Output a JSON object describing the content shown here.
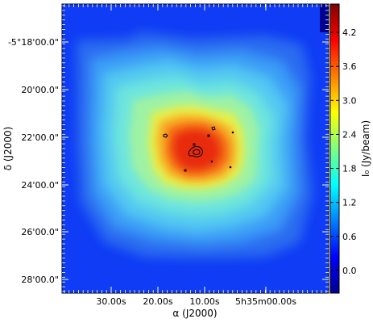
{
  "chart_data": {
    "type": "heatmap",
    "title": "",
    "xlabel": "α (J2000)",
    "ylabel": "δ (J2000)",
    "colorbar_label": "I₀ (Jy/beam)",
    "x_ticks": [
      "30.00s",
      "20.00s",
      "10.00s",
      "5h35m00.00s"
    ],
    "y_ticks": [
      "-5°18'00.0\"",
      "20'00.0\"",
      "22'00.0\"",
      "24'00.0\"",
      "26'00.0\"",
      "28'00.0\""
    ],
    "colorbar_ticks": [
      "0.0",
      "0.6",
      "1.2",
      "1.8",
      "2.4",
      "3.0",
      "3.6",
      "4.2"
    ],
    "colorbar_range": [
      -0.4,
      4.7
    ],
    "colormap": [
      "#00008f",
      "#0000ff",
      "#007fff",
      "#00ffff",
      "#7fff7f",
      "#ffff00",
      "#ff7f00",
      "#ff0000",
      "#7f0000"
    ],
    "intensity_levels": [
      {
        "level": 0.6,
        "color": "#2a6cf0"
      },
      {
        "level": 1.0,
        "color": "#3a9cf6"
      },
      {
        "level": 1.4,
        "color": "#52c8f2"
      },
      {
        "level": 1.8,
        "color": "#6ee6dc"
      },
      {
        "level": 2.4,
        "color": "#9ef2a4"
      },
      {
        "level": 3.0,
        "color": "#e8f04a"
      },
      {
        "level": 3.4,
        "color": "#f7b028"
      },
      {
        "level": 3.8,
        "color": "#f46a12"
      },
      {
        "level": 4.3,
        "color": "#e82a08"
      }
    ],
    "grid": false
  }
}
